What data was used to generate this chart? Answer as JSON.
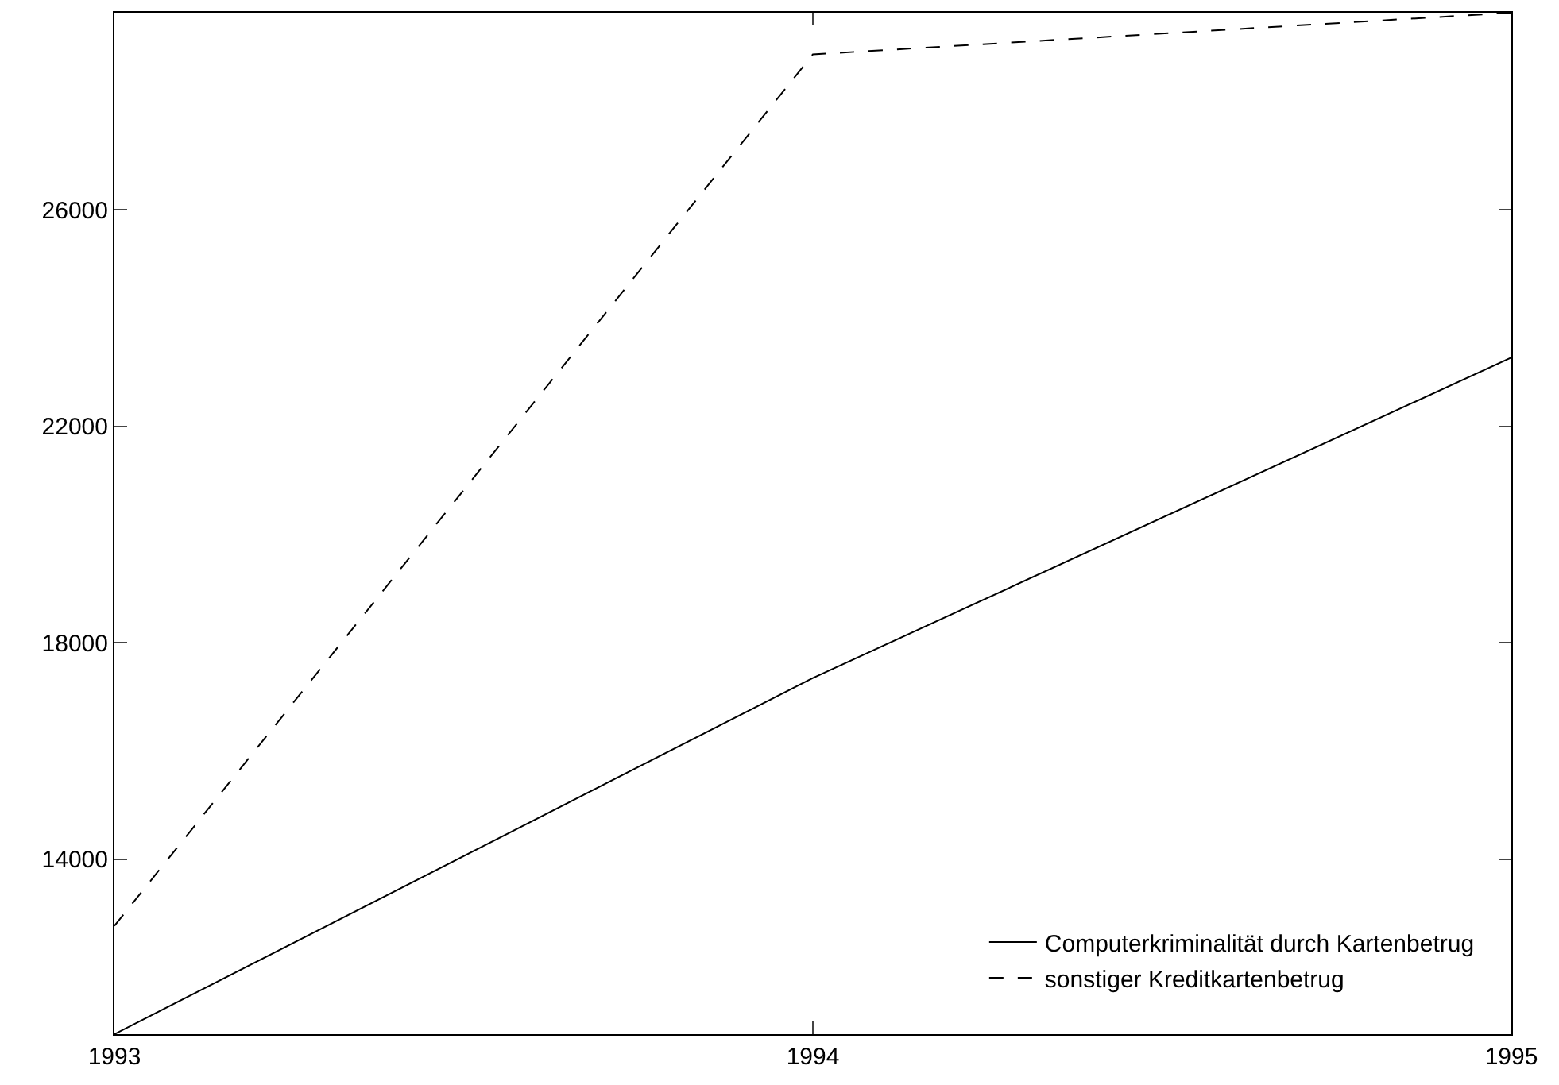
{
  "chart_data": {
    "type": "line",
    "x": [
      1993,
      1994,
      1995
    ],
    "series": [
      {
        "name": "Computerkriminalität durch Kartenbetrug",
        "color": "#000000",
        "values": [
          10770,
          17350,
          23270
        ],
        "line_style": "solid"
      },
      {
        "name": "sonstiger Kreditkartenbetrug",
        "color": "#000000",
        "values": [
          12770,
          28870,
          29640
        ],
        "line_style": "dashed"
      }
    ],
    "xlim": [
      1993,
      1995
    ],
    "xticks": [
      1993,
      1994,
      1995
    ],
    "ylim": [
      10770,
      29640
    ],
    "yticks": [
      14000,
      18000,
      22000,
      26000
    ],
    "legend": "bottom right",
    "marker": "none"
  }
}
